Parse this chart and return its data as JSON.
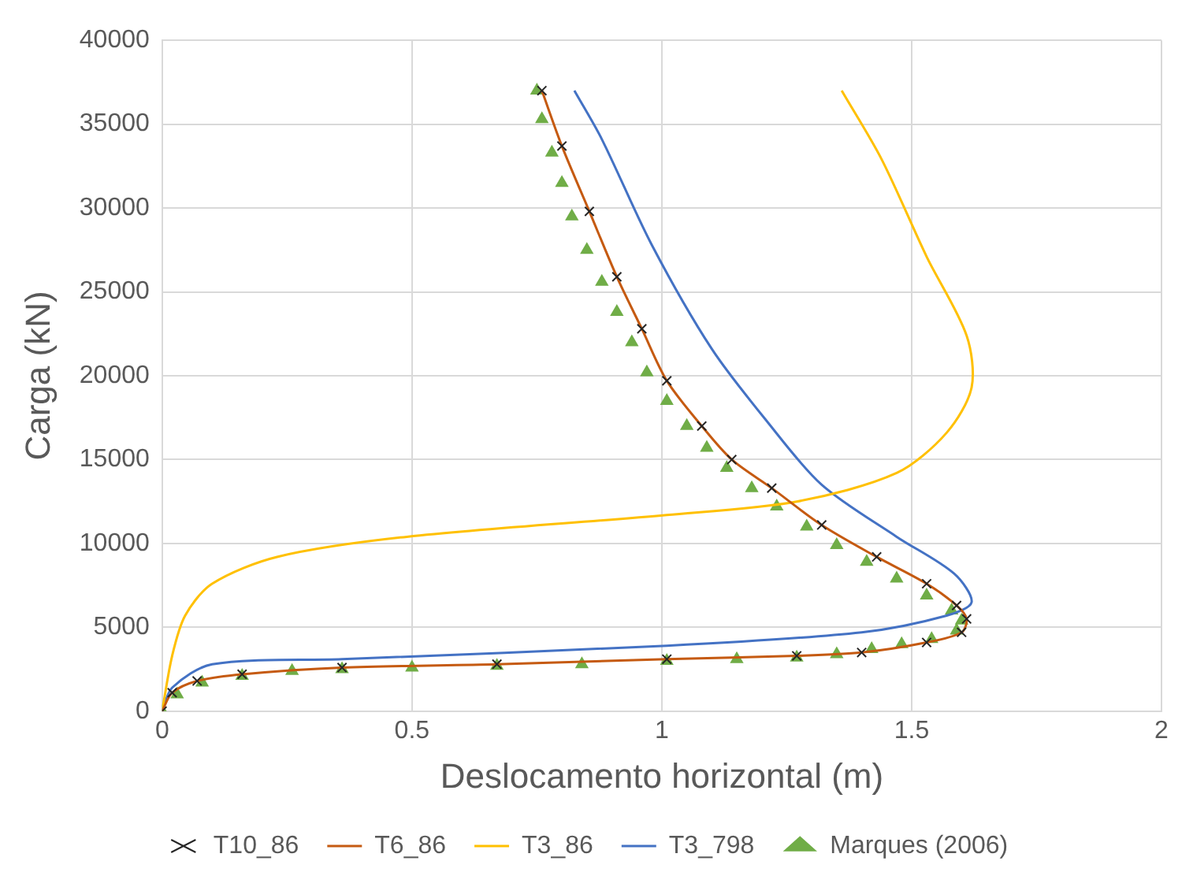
{
  "chart_data": {
    "type": "scatter",
    "xlabel": "Deslocamento horizontal (m)",
    "ylabel": "Carga (kN)",
    "xlim": [
      0,
      2
    ],
    "xticks": [
      0,
      0.5,
      1,
      1.5,
      2
    ],
    "ylim": [
      0,
      40000
    ],
    "yticks": [
      0,
      5000,
      10000,
      15000,
      20000,
      25000,
      30000,
      35000,
      40000
    ],
    "grid": true,
    "legend": "bottom",
    "series": [
      {
        "name": "T10_86",
        "marker": "cross",
        "color": "#262626",
        "x": [
          0,
          0.02,
          0.07,
          0.16,
          0.36,
          0.67,
          1.01,
          1.27,
          1.4,
          1.53,
          1.6,
          1.61,
          1.59,
          1.53,
          1.43,
          1.32,
          1.22,
          1.14,
          1.08,
          1.01,
          0.96,
          0.91,
          0.855,
          0.8,
          0.76
        ],
        "values": [
          0,
          1100,
          1800,
          2200,
          2600,
          2800,
          3100,
          3300,
          3500,
          4100,
          4700,
          5500,
          6300,
          7600,
          9200,
          11100,
          13300,
          15000,
          17000,
          19700,
          22800,
          25900,
          29800,
          33700,
          37000
        ]
      },
      {
        "name": "T6_86",
        "type": "line",
        "marker": "none",
        "color": "#c55a11",
        "x": [
          0,
          0.02,
          0.07,
          0.16,
          0.36,
          0.67,
          1.01,
          1.27,
          1.4,
          1.53,
          1.6,
          1.61,
          1.59,
          1.53,
          1.43,
          1.32,
          1.22,
          1.14,
          1.08,
          1.01,
          0.96,
          0.91,
          0.855,
          0.8,
          0.76
        ],
        "values": [
          0,
          1100,
          1800,
          2200,
          2600,
          2800,
          3100,
          3300,
          3500,
          4100,
          4700,
          5500,
          6300,
          7600,
          9200,
          11100,
          13300,
          15000,
          17000,
          19700,
          22800,
          25900,
          29800,
          33700,
          37000
        ]
      },
      {
        "name": "T3_86",
        "type": "line",
        "marker": "none",
        "color": "#ffc000",
        "x": [
          0,
          0.02,
          0.046,
          0.1,
          0.23,
          0.49,
          1.01,
          1.27,
          1.47,
          1.57,
          1.62,
          1.61,
          1.53,
          1.44,
          1.36
        ],
        "values": [
          0,
          3300,
          5700,
          7600,
          9200,
          10400,
          11700,
          12500,
          14200,
          16600,
          19300,
          22400,
          27100,
          32900,
          37000
        ]
      },
      {
        "name": "T3_798",
        "type": "line",
        "marker": "none",
        "color": "#4472c4",
        "x": [
          0,
          0.02,
          0.1,
          0.36,
          1.01,
          1.4,
          1.57,
          1.62,
          1.585,
          1.47,
          1.32,
          1.21,
          1.1,
          0.98,
          0.88,
          0.825
        ],
        "values": [
          0,
          1400,
          2800,
          3100,
          3900,
          4700,
          5700,
          6500,
          8200,
          10400,
          13500,
          17300,
          21600,
          27800,
          34100,
          37000
        ]
      },
      {
        "name": "Marques (2006)",
        "marker": "triangle",
        "color": "#70ad47",
        "x": [
          0,
          0.03,
          0.08,
          0.16,
          0.26,
          0.36,
          0.5,
          0.67,
          0.84,
          1.01,
          1.15,
          1.27,
          1.35,
          1.42,
          1.48,
          1.54,
          1.59,
          1.6,
          1.58,
          1.53,
          1.47,
          1.41,
          1.35,
          1.29,
          1.23,
          1.18,
          1.13,
          1.09,
          1.05,
          1.01,
          0.97,
          0.94,
          0.91,
          0.88,
          0.85,
          0.82,
          0.8,
          0.78,
          0.76,
          0.75
        ],
        "values": [
          0,
          1000,
          1700,
          2100,
          2400,
          2500,
          2600,
          2700,
          2800,
          3000,
          3100,
          3200,
          3400,
          3700,
          4000,
          4300,
          4800,
          5400,
          6000,
          6900,
          7900,
          8900,
          9900,
          11000,
          12200,
          13300,
          14500,
          15700,
          17000,
          18500,
          20200,
          22000,
          23800,
          25600,
          27500,
          29500,
          31500,
          33300,
          35300,
          37000
        ]
      }
    ]
  }
}
